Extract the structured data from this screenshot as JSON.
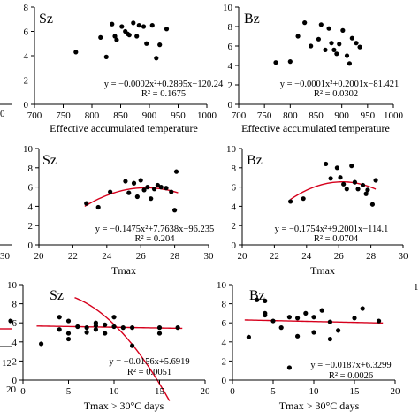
{
  "colors": {
    "points": "#000000",
    "fit": "#d6001c"
  },
  "chart_data": [
    {
      "type": "scatter",
      "panel_label": "Sz",
      "xlabel": "Effective accumulated temperature",
      "ylabel": "",
      "xlim": [
        700,
        1000
      ],
      "ylim": [
        0,
        8
      ],
      "xticks": [
        700,
        750,
        800,
        850,
        900,
        950,
        1000
      ],
      "yticks": [
        0,
        2,
        4,
        6,
        8
      ],
      "x": [
        772,
        815,
        825,
        835,
        840,
        843,
        852,
        858,
        862,
        865,
        872,
        878,
        882,
        890,
        895,
        905,
        912,
        918,
        930
      ],
      "y": [
        4.3,
        5.5,
        3.9,
        6.6,
        5.6,
        5.3,
        6.4,
        6.0,
        5.8,
        5.7,
        6.7,
        5.6,
        6.5,
        6.4,
        5.0,
        6.5,
        3.8,
        4.9,
        6.2
      ],
      "fit": {
        "a": -0.0002,
        "b": 0.2895,
        "c": -120.24,
        "xrange": [
          770,
          935
        ]
      },
      "equation": "y = −0.0002x²+0.2895x−120.24",
      "r2": "R² = 0.1675"
    },
    {
      "type": "scatter",
      "panel_label": "Bz",
      "xlabel": "Effective accumulated temperature",
      "ylabel": "",
      "xlim": [
        700,
        1000
      ],
      "ylim": [
        0,
        10
      ],
      "xticks": [
        700,
        750,
        800,
        850,
        900,
        950,
        1000
      ],
      "yticks": [
        0,
        2,
        4,
        6,
        8,
        10
      ],
      "x": [
        772,
        800,
        815,
        828,
        840,
        855,
        860,
        868,
        875,
        880,
        885,
        890,
        895,
        902,
        910,
        915,
        920,
        928,
        935
      ],
      "y": [
        4.3,
        4.4,
        7.0,
        8.4,
        6.0,
        6.7,
        8.2,
        5.6,
        7.8,
        6.3,
        5.6,
        5.2,
        6.2,
        7.6,
        5.0,
        4.2,
        6.8,
        6.3,
        5.9
      ],
      "fit": {
        "a": -0.0001,
        "b": 0.2001,
        "c": -81.421,
        "xrange": [
          770,
          950
        ]
      },
      "equation": "y = −0.0001x²+0.2001x−81.421",
      "r2": "R² = 0.0302"
    },
    {
      "type": "scatter",
      "panel_label": "Sz",
      "xlabel": "Tmax",
      "ylabel": "",
      "xlim": [
        20,
        30
      ],
      "ylim": [
        0,
        10
      ],
      "xticks": [
        20,
        22,
        24,
        26,
        28,
        30
      ],
      "yticks": [
        0,
        2,
        4,
        6,
        8,
        10
      ],
      "x": [
        22.8,
        23.5,
        24.2,
        25.1,
        25.3,
        25.6,
        25.8,
        26.0,
        26.2,
        26.4,
        26.6,
        26.8,
        27.0,
        27.2,
        27.5,
        27.8,
        28.0,
        28.1
      ],
      "y": [
        4.3,
        3.9,
        5.5,
        6.6,
        5.4,
        6.4,
        5.0,
        6.7,
        5.7,
        6.0,
        4.8,
        5.8,
        6.2,
        6.0,
        5.9,
        5.5,
        3.6,
        7.6
      ],
      "fit": {
        "a": -0.1475,
        "b": 7.7638,
        "c": -96.235,
        "xrange": [
          22.7,
          28.2
        ]
      },
      "equation": "y = −0.1475x²+7.7638x−96.235",
      "r2": "R² = 0.204"
    },
    {
      "type": "scatter",
      "panel_label": "Bz",
      "xlabel": "Tmax",
      "ylabel": "",
      "xlim": [
        20,
        30
      ],
      "ylim": [
        0,
        10
      ],
      "xticks": [
        20,
        22,
        24,
        26,
        28,
        30
      ],
      "yticks": [
        0,
        2,
        4,
        6,
        8,
        10
      ],
      "x": [
        23.0,
        23.8,
        25.2,
        25.5,
        25.9,
        26.1,
        26.3,
        26.5,
        26.8,
        27.0,
        27.2,
        27.5,
        27.7,
        27.8,
        28.1,
        28.3
      ],
      "y": [
        4.5,
        4.8,
        8.4,
        6.9,
        8.0,
        7.0,
        6.3,
        5.8,
        8.2,
        6.5,
        5.8,
        6.2,
        5.3,
        5.7,
        4.2,
        6.7
      ],
      "fit": {
        "a": -0.1754,
        "b": 9.2001,
        "c": -114.1,
        "xrange": [
          23.0,
          28.3
        ]
      },
      "equation": "y = −0.1754x²+9.2001x−114.1",
      "r2": "R² = 0.0704"
    },
    {
      "type": "scatter",
      "panel_label": "Sz",
      "xlabel": "Tmax > 30°C days",
      "ylabel": "",
      "xlim": [
        0,
        20
      ],
      "ylim": [
        0,
        10
      ],
      "xticks": [
        0,
        5,
        10,
        15,
        20
      ],
      "yticks": [
        0,
        2,
        4,
        6,
        8,
        10
      ],
      "x": [
        2,
        4,
        4,
        5,
        5,
        5,
        6,
        7,
        7,
        8,
        8,
        8,
        9,
        9,
        10,
        10,
        11,
        12,
        12,
        15,
        15,
        17
      ],
      "y": [
        3.8,
        6.6,
        5.3,
        6.2,
        4.9,
        4.3,
        5.6,
        5.5,
        5.0,
        5.7,
        5.3,
        6.0,
        4.9,
        5.8,
        5.6,
        6.6,
        5.5,
        5.5,
        3.6,
        5.5,
        4.9,
        5.5
      ],
      "fit": {
        "a": 0,
        "b": -0.0156,
        "c": 5.6919,
        "xrange": [
          1.5,
          17.5
        ]
      },
      "equation": "y = −0.0156x+5.6919",
      "r2": "R² = 0.0051"
    },
    {
      "type": "scatter",
      "panel_label": "Bz",
      "xlabel": "Tmax > 30°C days",
      "ylabel": "",
      "xlim": [
        0,
        20
      ],
      "ylim": [
        0,
        10
      ],
      "xticks": [
        0,
        5,
        10,
        15,
        20
      ],
      "yticks": [
        0,
        2,
        4,
        6,
        8,
        10
      ],
      "x": [
        2,
        3,
        4,
        4,
        4,
        5,
        6,
        7,
        7,
        8,
        8,
        9,
        10,
        10,
        11,
        12,
        12,
        13,
        15,
        16,
        18
      ],
      "y": [
        4.5,
        8.4,
        8.3,
        7.0,
        6.8,
        6.2,
        5.5,
        1.3,
        6.6,
        6.5,
        4.6,
        7.0,
        5.0,
        6.6,
        7.3,
        6.1,
        4.3,
        5.2,
        6.5,
        7.5,
        6.2
      ],
      "fit": {
        "a": 0,
        "b": -0.0187,
        "c": 6.3299,
        "xrange": [
          1.5,
          18.5
        ]
      },
      "equation": "y = −0.0187x+6.3299",
      "r2": "R² = 0.0026"
    }
  ],
  "edge_fragments": {
    "row1_left_x": "0",
    "row2_left_x": "30",
    "row3_left_x": [
      "12",
      "20"
    ],
    "row3_right_y": "1"
  }
}
